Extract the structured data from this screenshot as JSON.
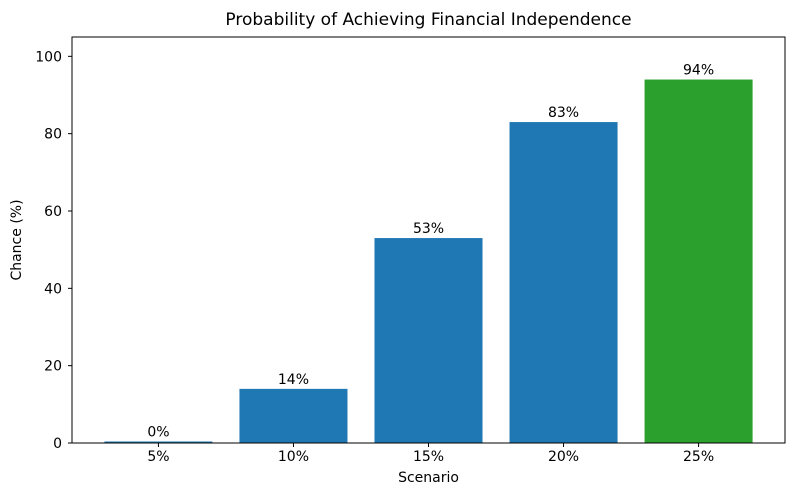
{
  "figure": {
    "background": "#ffffff"
  },
  "chart_data": {
    "type": "bar",
    "title": "Probability of Achieving Financial Independence",
    "xlabel": "Scenario",
    "ylabel": "Chance (%)",
    "categories": [
      "5%",
      "10%",
      "15%",
      "20%",
      "25%"
    ],
    "values": [
      0,
      14,
      53,
      83,
      94
    ],
    "bar_labels": [
      "0%",
      "14%",
      "53%",
      "83%",
      "94%"
    ],
    "bar_colors": [
      "#1f77b4",
      "#1f77b4",
      "#1f77b4",
      "#1f77b4",
      "#2ca02c"
    ],
    "y_ticks": [
      0,
      20,
      40,
      60,
      80,
      100
    ],
    "ylim": [
      0,
      105
    ],
    "grid": false,
    "legend": false,
    "accent_blue": "#1f77b4",
    "accent_green": "#2ca02c"
  }
}
